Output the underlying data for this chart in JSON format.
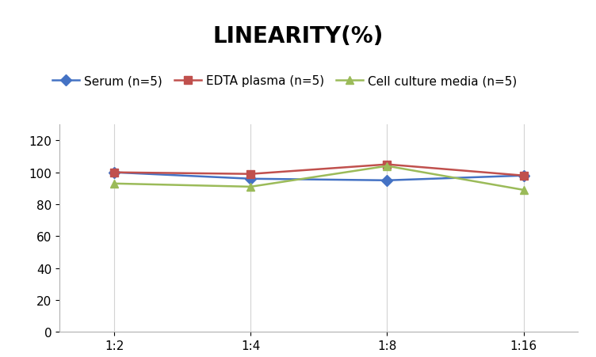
{
  "title": "LINEARITY(%)",
  "x_labels": [
    "1:2",
    "1:4",
    "1:8",
    "1:16"
  ],
  "series": [
    {
      "label": "Serum (n=5)",
      "values": [
        100,
        96,
        95,
        98
      ],
      "color": "#4472C4",
      "marker": "D"
    },
    {
      "label": "EDTA plasma (n=5)",
      "values": [
        100,
        99,
        105,
        98
      ],
      "color": "#C0504D",
      "marker": "s"
    },
    {
      "label": "Cell culture media (n=5)",
      "values": [
        93,
        91,
        104,
        89
      ],
      "color": "#9BBB59",
      "marker": "^"
    }
  ],
  "ylim": [
    0,
    130
  ],
  "yticks": [
    0,
    20,
    40,
    60,
    80,
    100,
    120
  ],
  "title_fontsize": 20,
  "legend_fontsize": 11,
  "tick_fontsize": 11,
  "background_color": "#ffffff",
  "grid_color": "#d3d3d3",
  "line_width": 1.8,
  "marker_size": 7
}
